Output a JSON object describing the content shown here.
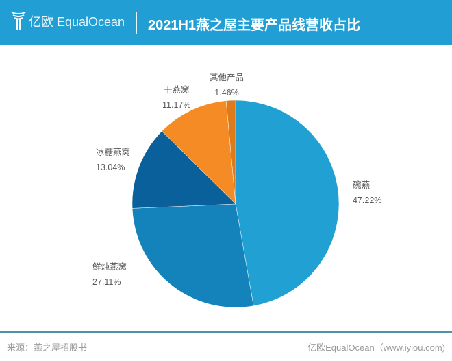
{
  "header": {
    "logo_text": "亿欧 EqualOcean",
    "title": "2021H1燕之屋主要产品线营收占比"
  },
  "chart_data": {
    "type": "pie",
    "title": "2021H1燕之屋主要产品线营收占比",
    "start": "top",
    "direction": "clockwise",
    "slices": [
      {
        "label": "碗燕",
        "value": 47.22,
        "text": "47.22%",
        "color": "#21a0d4"
      },
      {
        "label": "鲜炖燕窝",
        "value": 27.11,
        "text": "27.11%",
        "color": "#1583bb"
      },
      {
        "label": "冰糖燕窝",
        "value": 13.04,
        "text": "13.04%",
        "color": "#0a609b"
      },
      {
        "label": "干燕窝",
        "value": 11.17,
        "text": "11.17%",
        "color": "#f58b24"
      },
      {
        "label": "其他产品",
        "value": 1.46,
        "text": "1.46%",
        "color": "#dd7a1a"
      }
    ]
  },
  "footer": {
    "source": "来源：燕之屋招股书",
    "credit": "亿欧EqualOcean（www.iyiou.com)"
  }
}
